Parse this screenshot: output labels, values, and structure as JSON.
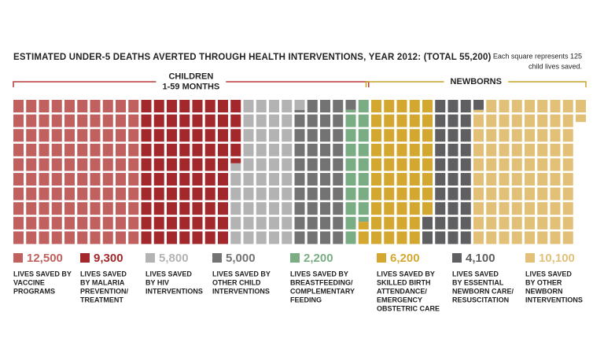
{
  "chart_data": {
    "type": "waffle",
    "title": "ESTIMATED UNDER-5 DEATHS AVERTED THROUGH HEALTH INTERVENTIONS, YEAR 2012: (TOTAL 55,200)",
    "note_lines": [
      "Each square represents 125",
      "child lives saved."
    ],
    "unit": 125,
    "rows": 10,
    "groups": [
      {
        "label_lines": [
          "CHILDREN",
          "1-59 MONTHS"
        ],
        "color": "#b5383b",
        "series": [
          {
            "value": 12500,
            "value_label": "12,500",
            "color": "#c0605f",
            "description_lines": [
              "LIVES SAVED BY",
              "VACCINE",
              "PROGRAMS"
            ]
          },
          {
            "value": 9300,
            "value_label": "9,300",
            "color": "#a3282c",
            "description_lines": [
              "LIVES SAVED",
              "BY MALARIA",
              "PREVENTION/",
              "TREATMENT"
            ]
          },
          {
            "value": 5800,
            "value_label": "5,800",
            "color": "#b3b3b3",
            "description_lines": [
              "LIVES SAVED",
              "BY HIV",
              "INTERVENTIONS"
            ]
          },
          {
            "value": 5000,
            "value_label": "5,000",
            "color": "#737373",
            "description_lines": [
              "LIVES SAVED BY",
              "OTHER CHILD",
              "INTERVENTIONS"
            ]
          },
          {
            "value": 2200,
            "value_label": "2,200",
            "color": "#7aad84",
            "description_lines": [
              "LIVES SAVED BY",
              "BREASTFEEDING/",
              "COMPLEMENTARY",
              "FEEDING"
            ]
          }
        ]
      },
      {
        "label_lines": [
          "NEWBORNS"
        ],
        "color": "#c9a227",
        "series": [
          {
            "value": 6200,
            "value_label": "6,200",
            "color": "#d4a830",
            "description_lines": [
              "LIVES SAVED BY",
              "SKILLED BIRTH",
              "ATTENDANCE/",
              "EMERGENCY",
              "OBSTETRIC CARE"
            ]
          },
          {
            "value": 4100,
            "value_label": "4,100",
            "color": "#5f5f61",
            "description_lines": [
              "LIVES SAVED",
              "BY ESSENTIAL",
              "NEWBORN CARE/",
              "RESUSCITATION"
            ]
          },
          {
            "value": 10100,
            "value_label": "10,100",
            "color": "#e2c077",
            "description_lines": [
              "LIVES SAVED",
              "BY OTHER",
              "NEWBORN",
              "INTERVENTIONS"
            ]
          }
        ]
      }
    ]
  }
}
